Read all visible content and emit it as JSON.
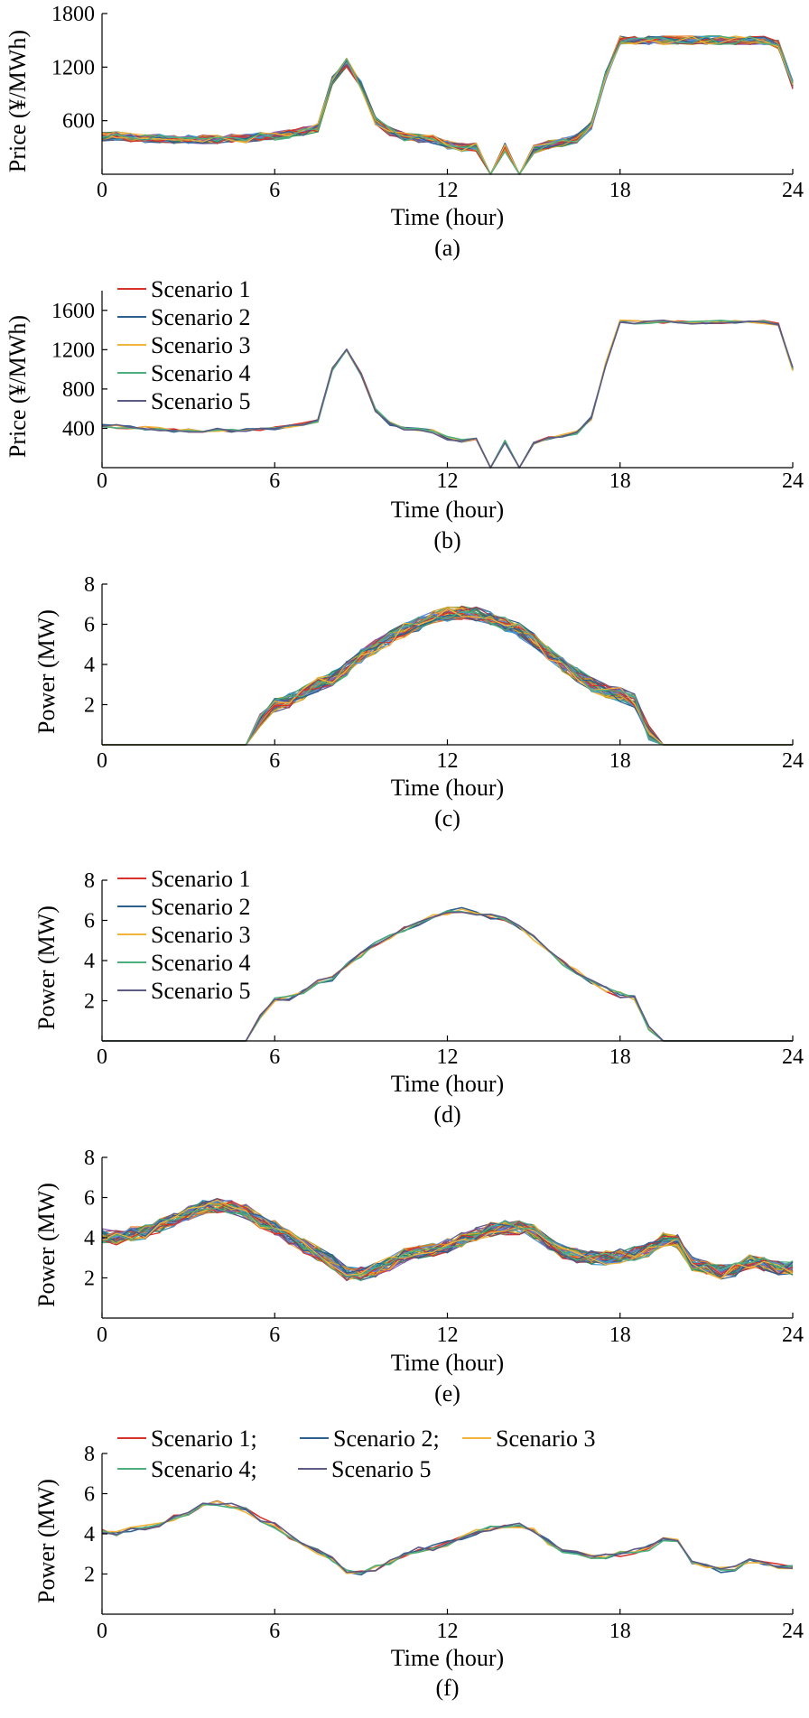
{
  "figure": {
    "scenario_names": [
      "Scenario 1",
      "Scenario 2",
      "Scenario 3",
      "Scenario 4",
      "Scenario 5"
    ]
  },
  "chart_data": [
    {
      "id": "a",
      "type": "line",
      "caption": "(a)",
      "xlabel": "Time (hour)",
      "ylabel": "Price (¥/MWh)",
      "xlim": [
        0,
        24
      ],
      "ylim": [
        0,
        1800
      ],
      "xticks": [
        0,
        6,
        12,
        18,
        24
      ],
      "yticks": [
        600,
        1200,
        1800
      ],
      "legend": "none",
      "n_series": 40,
      "x": [
        0,
        0.5,
        1,
        1.5,
        2,
        2.5,
        3,
        3.5,
        4,
        4.5,
        5,
        5.5,
        6,
        6.5,
        7,
        7.5,
        8,
        8.5,
        9,
        9.5,
        10,
        10.5,
        11,
        11.5,
        12,
        12.5,
        13,
        13.5,
        14,
        14.5,
        15,
        15.5,
        16,
        16.5,
        17,
        17.5,
        18,
        18.5,
        19,
        19.5,
        20,
        20.5,
        21,
        21.5,
        22,
        22.5,
        23,
        23.5,
        24
      ],
      "base_values": [
        420,
        430,
        410,
        400,
        400,
        390,
        390,
        390,
        390,
        400,
        400,
        420,
        430,
        450,
        480,
        520,
        1050,
        1250,
        1000,
        600,
        480,
        420,
        400,
        390,
        330,
        300,
        300,
        0,
        300,
        0,
        280,
        330,
        360,
        400,
        550,
        1100,
        1500,
        1500,
        1500,
        1500,
        1500,
        1500,
        1500,
        1500,
        1500,
        1500,
        1500,
        1450,
        1000
      ]
    },
    {
      "id": "b",
      "type": "line",
      "caption": "(b)",
      "xlabel": "Time (hour)",
      "ylabel": "Price (¥/MWh)",
      "xlim": [
        0,
        24
      ],
      "ylim": [
        0,
        1800
      ],
      "xticks": [
        0,
        6,
        12,
        18,
        24
      ],
      "yticks": [
        400,
        800,
        1200,
        1600
      ],
      "legend": "upper-left",
      "legend_layout": "column",
      "series": [
        {
          "name": "Scenario 1",
          "color": "#d7332b"
        },
        {
          "name": "Scenario 2",
          "color": "#2d5f8f"
        },
        {
          "name": "Scenario 3",
          "color": "#f2b43a"
        },
        {
          "name": "Scenario 4",
          "color": "#4caf7d"
        },
        {
          "name": "Scenario 5",
          "color": "#5e5a86"
        }
      ],
      "x": [
        0,
        0.5,
        1,
        1.5,
        2,
        2.5,
        3,
        3.5,
        4,
        4.5,
        5,
        5.5,
        6,
        6.5,
        7,
        7.5,
        8,
        8.5,
        9,
        9.5,
        10,
        10.5,
        11,
        11.5,
        12,
        12.5,
        13,
        13.5,
        14,
        14.5,
        15,
        15.5,
        16,
        16.5,
        17,
        17.5,
        18,
        18.5,
        19,
        19.5,
        20,
        20.5,
        21,
        21.5,
        22,
        22.5,
        23,
        23.5,
        24
      ],
      "base_values": [
        420,
        420,
        410,
        400,
        390,
        380,
        380,
        380,
        380,
        380,
        380,
        390,
        400,
        420,
        440,
        470,
        1000,
        1200,
        950,
        580,
        450,
        400,
        380,
        370,
        300,
        270,
        280,
        0,
        270,
        0,
        260,
        300,
        320,
        360,
        500,
        1050,
        1480,
        1480,
        1480,
        1480,
        1480,
        1480,
        1480,
        1480,
        1480,
        1480,
        1480,
        1450,
        1000
      ]
    },
    {
      "id": "c",
      "type": "line",
      "caption": "(c)",
      "xlabel": "Time (hour)",
      "ylabel": "Power (MW)",
      "xlim": [
        0,
        24
      ],
      "ylim": [
        0,
        8
      ],
      "xticks": [
        0,
        6,
        12,
        18,
        24
      ],
      "yticks": [
        2,
        4,
        6,
        8
      ],
      "legend": "none",
      "n_series": 40,
      "x": [
        0,
        0.5,
        1,
        1.5,
        2,
        2.5,
        3,
        3.5,
        4,
        4.5,
        5,
        5.5,
        6,
        6.5,
        7,
        7.5,
        8,
        8.5,
        9,
        9.5,
        10,
        10.5,
        11,
        11.5,
        12,
        12.5,
        13,
        13.5,
        14,
        14.5,
        15,
        15.5,
        16,
        16.5,
        17,
        17.5,
        18,
        18.5,
        19,
        19.5,
        20,
        20.5,
        21,
        21.5,
        22,
        22.5,
        23,
        23.5,
        24
      ],
      "base_values": [
        0,
        0,
        0,
        0,
        0,
        0,
        0,
        0,
        0,
        0,
        0,
        1.2,
        2,
        2.2,
        2.6,
        3,
        3.3,
        3.8,
        4.4,
        4.9,
        5.3,
        5.7,
        6,
        6.3,
        6.5,
        6.6,
        6.5,
        6.3,
        6,
        5.7,
        5.2,
        4.6,
        4,
        3.5,
        3,
        2.7,
        2.5,
        2.2,
        0.6,
        0,
        0,
        0,
        0,
        0,
        0,
        0,
        0,
        0,
        0
      ]
    },
    {
      "id": "d",
      "type": "line",
      "caption": "(d)",
      "xlabel": "Time (hour)",
      "ylabel": "Power (MW)",
      "xlim": [
        0,
        24
      ],
      "ylim": [
        0,
        8
      ],
      "xticks": [
        0,
        6,
        12,
        18,
        24
      ],
      "yticks": [
        2,
        4,
        6,
        8
      ],
      "legend": "upper-left",
      "legend_layout": "column",
      "series": [
        {
          "name": "Scenario 1",
          "color": "#d7332b"
        },
        {
          "name": "Scenario 2",
          "color": "#2d5f8f"
        },
        {
          "name": "Scenario 3",
          "color": "#f2b43a"
        },
        {
          "name": "Scenario 4",
          "color": "#4caf7d"
        },
        {
          "name": "Scenario 5",
          "color": "#5e5a86"
        }
      ],
      "x": [
        0,
        0.5,
        1,
        1.5,
        2,
        2.5,
        3,
        3.5,
        4,
        4.5,
        5,
        5.5,
        6,
        6.5,
        7,
        7.5,
        8,
        8.5,
        9,
        9.5,
        10,
        10.5,
        11,
        11.5,
        12,
        12.5,
        13,
        13.5,
        14,
        14.5,
        15,
        15.5,
        16,
        16.5,
        17,
        17.5,
        18,
        18.5,
        19,
        19.5,
        20,
        20.5,
        21,
        21.5,
        22,
        22.5,
        23,
        23.5,
        24
      ],
      "base_values": [
        0,
        0,
        0,
        0,
        0,
        0,
        0,
        0,
        0,
        0,
        0,
        1.2,
        2,
        2.1,
        2.5,
        2.9,
        3.1,
        3.7,
        4.3,
        4.8,
        5.2,
        5.6,
        5.9,
        6.2,
        6.4,
        6.5,
        6.4,
        6.2,
        6,
        5.6,
        5.1,
        4.5,
        3.9,
        3.4,
        2.9,
        2.6,
        2.3,
        2.1,
        0.6,
        0,
        0,
        0,
        0,
        0,
        0,
        0,
        0,
        0,
        0
      ]
    },
    {
      "id": "e",
      "type": "line",
      "caption": "(e)",
      "xlabel": "Time (hour)",
      "ylabel": "Power (MW)",
      "xlim": [
        0,
        24
      ],
      "ylim": [
        0,
        8
      ],
      "xticks": [
        0,
        6,
        12,
        18,
        24
      ],
      "yticks": [
        2,
        4,
        6,
        8
      ],
      "legend": "none",
      "n_series": 40,
      "x": [
        0,
        0.5,
        1,
        1.5,
        2,
        2.5,
        3,
        3.5,
        4,
        4.5,
        5,
        5.5,
        6,
        6.5,
        7,
        7.5,
        8,
        8.5,
        9,
        9.5,
        10,
        10.5,
        11,
        11.5,
        12,
        12.5,
        13,
        13.5,
        14,
        14.5,
        15,
        15.5,
        16,
        16.5,
        17,
        17.5,
        18,
        18.5,
        19,
        19.5,
        20,
        20.5,
        21,
        21.5,
        22,
        22.5,
        23,
        23.5,
        24
      ],
      "base_values": [
        4.1,
        4,
        4.2,
        4.3,
        4.6,
        4.9,
        5.2,
        5.5,
        5.6,
        5.5,
        5.3,
        4.8,
        4.5,
        4,
        3.6,
        3.2,
        2.8,
        2.2,
        2.2,
        2.4,
        2.7,
        3.1,
        3.3,
        3.4,
        3.6,
        3.9,
        4.2,
        4.4,
        4.5,
        4.5,
        4.3,
        3.7,
        3.3,
        3.1,
        3,
        3,
        3.1,
        3.2,
        3.4,
        3.9,
        3.8,
        2.7,
        2.5,
        2.3,
        2.4,
        2.8,
        2.7,
        2.5,
        2.5
      ]
    },
    {
      "id": "f",
      "type": "line",
      "caption": "(f)",
      "xlabel": "Time (hour)",
      "ylabel": "Power (MW)",
      "xlim": [
        0,
        24
      ],
      "ylim": [
        0,
        8
      ],
      "xticks": [
        0,
        6,
        12,
        18,
        24
      ],
      "yticks": [
        2,
        4,
        6,
        8
      ],
      "legend": "top-inline",
      "legend_layout": "rows",
      "legend_rows": [
        [
          "Scenario 1;",
          "Scenario 2;",
          "Scenario 3"
        ],
        [
          "Scenario 4;",
          "Scenario 5"
        ]
      ],
      "series": [
        {
          "name": "Scenario 1",
          "color": "#d7332b"
        },
        {
          "name": "Scenario 2",
          "color": "#2d5f8f"
        },
        {
          "name": "Scenario 3",
          "color": "#f2b43a"
        },
        {
          "name": "Scenario 4",
          "color": "#4caf7d"
        },
        {
          "name": "Scenario 5",
          "color": "#5e5a86"
        }
      ],
      "x": [
        0,
        0.5,
        1,
        1.5,
        2,
        2.5,
        3,
        3.5,
        4,
        4.5,
        5,
        5.5,
        6,
        6.5,
        7,
        7.5,
        8,
        8.5,
        9,
        9.5,
        10,
        10.5,
        11,
        11.5,
        12,
        12.5,
        13,
        13.5,
        14,
        14.5,
        15,
        15.5,
        16,
        16.5,
        17,
        17.5,
        18,
        18.5,
        19,
        19.5,
        20,
        20.5,
        21,
        21.5,
        22,
        22.5,
        23,
        23.5,
        24
      ],
      "base_values": [
        4.1,
        4,
        4.2,
        4.3,
        4.5,
        4.8,
        5,
        5.4,
        5.5,
        5.4,
        5.2,
        4.7,
        4.4,
        3.9,
        3.5,
        3.1,
        2.7,
        2.1,
        2.1,
        2.3,
        2.6,
        3,
        3.2,
        3.3,
        3.5,
        3.8,
        4.1,
        4.3,
        4.4,
        4.4,
        4.2,
        3.6,
        3.2,
        3,
        2.9,
        2.9,
        3,
        3.1,
        3.3,
        3.8,
        3.7,
        2.6,
        2.4,
        2.2,
        2.3,
        2.7,
        2.6,
        2.4,
        2.4
      ]
    }
  ],
  "palette": [
    "#d7332b",
    "#2d5f8f",
    "#f2b43a",
    "#4caf7d",
    "#5e5a86",
    "#3aa0c8",
    "#8a5bb3",
    "#e07a2e",
    "#2e8b57",
    "#9c3d54",
    "#5b8bd6",
    "#c9a227"
  ]
}
